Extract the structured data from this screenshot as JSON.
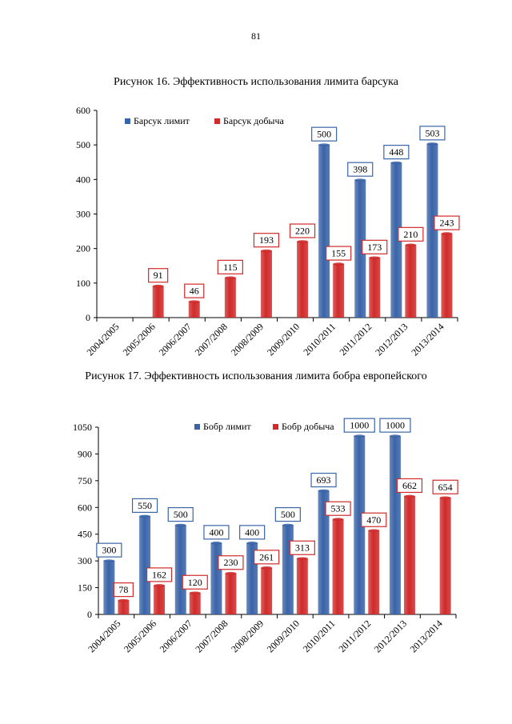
{
  "page_number": "81",
  "captions": {
    "fig16": "Рисунок 16. Эффективность использования лимита барсука",
    "fig17": "Рисунок 17. Эффективность использования лимита бобра европейского"
  },
  "colors": {
    "limit": "#3a64a8",
    "harvest": "#d02a2a"
  },
  "chart_data": [
    {
      "type": "bar",
      "title": "Рисунок 16. Эффективность использования лимита барсука",
      "categories": [
        "2004/2005",
        "2005/2006",
        "2006/2007",
        "2007/2008",
        "2008/2009",
        "2009/2010",
        "2010/2011",
        "2011/2012",
        "2012/2013",
        "2013/2014"
      ],
      "series": [
        {
          "name": "Барсук лимит",
          "values": [
            0,
            0,
            0,
            0,
            0,
            0,
            500,
            398,
            448,
            503
          ]
        },
        {
          "name": "Барсук добыча",
          "values": [
            0,
            91,
            46,
            115,
            193,
            220,
            155,
            173,
            210,
            243
          ]
        }
      ],
      "yticks": [
        0,
        100,
        200,
        300,
        400,
        500,
        600
      ],
      "ylim": [
        0,
        600
      ],
      "legend": "top-left",
      "xlabel": "",
      "ylabel": ""
    },
    {
      "type": "bar",
      "title": "Рисунок 17. Эффективность использования лимита бобра европейского",
      "categories": [
        "2004/2005",
        "2005/2006",
        "2006/2007",
        "2007/2008",
        "2008/2009",
        "2009/2010",
        "2010/2011",
        "2011/2012",
        "2012/2013",
        "2013/2014"
      ],
      "series": [
        {
          "name": "Бобр лимит",
          "values": [
            300,
            550,
            500,
            400,
            400,
            500,
            693,
            1000,
            1000,
            0
          ]
        },
        {
          "name": "Бобр добыча",
          "values": [
            78,
            162,
            120,
            230,
            261,
            313,
            533,
            470,
            662,
            654
          ]
        }
      ],
      "yticks": [
        0,
        150,
        300,
        450,
        600,
        750,
        900,
        1050
      ],
      "ylim": [
        0,
        1050
      ],
      "legend": "top-center",
      "xlabel": "",
      "ylabel": ""
    }
  ]
}
